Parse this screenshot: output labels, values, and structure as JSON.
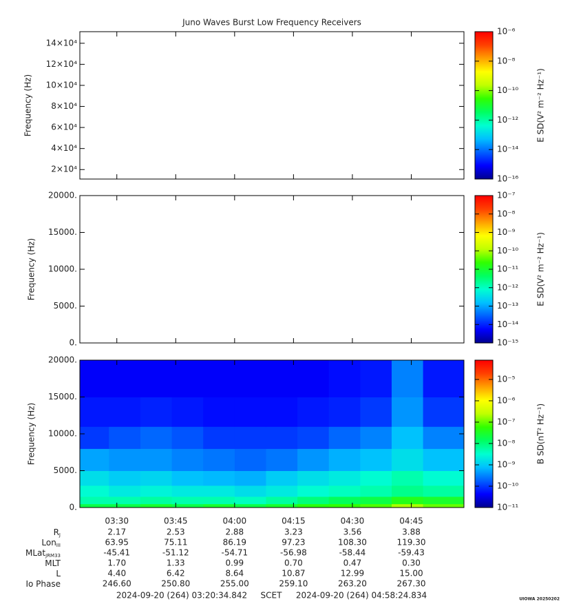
{
  "chart_data": [
    {
      "type": "spectrogram",
      "title": "Juno Waves Burst Low Frequency Receivers",
      "ylabel": "Frequency (Hz)",
      "xlim": [
        "2024-09-20T03:20:34.842",
        "2024-09-20T04:58:24.834"
      ],
      "xticks": [
        {
          "value": "2024-09-20T03:30:00",
          "label": "03:30"
        },
        {
          "value": "2024-09-20T03:45:00",
          "label": "03:45"
        },
        {
          "value": "2024-09-20T04:00:00",
          "label": "04:00"
        },
        {
          "value": "2024-09-20T04:15:00",
          "label": "04:15"
        },
        {
          "value": "2024-09-20T04:30:00",
          "label": "04:30"
        },
        {
          "value": "2024-09-20T04:45:00",
          "label": "04:45"
        }
      ],
      "ylim": [
        11000,
        151000
      ],
      "yticks": [
        {
          "value": 20000,
          "label": "2×10⁴"
        },
        {
          "value": 40000,
          "label": "4×10⁴"
        },
        {
          "value": 60000,
          "label": "6×10⁴"
        },
        {
          "value": 80000,
          "label": "8×10⁴"
        },
        {
          "value": 100000,
          "label": "10×10⁴"
        },
        {
          "value": 120000,
          "label": "12×10⁴"
        },
        {
          "value": 140000,
          "label": "14×10⁴"
        }
      ],
      "colorbar_label": "E SD(V² m⁻² Hz⁻¹)",
      "clim": [
        1e-16,
        1e-06
      ],
      "log_color": true,
      "cticks": [
        {
          "value": 1e-06,
          "label": "10⁻⁶"
        },
        {
          "value": 1e-08,
          "label": "10⁻⁸"
        },
        {
          "value": 1e-10,
          "label": "10⁻¹⁰"
        },
        {
          "value": 1e-12,
          "label": "10⁻¹²"
        },
        {
          "value": 1e-14,
          "label": "10⁻¹⁴"
        },
        {
          "value": 1e-16,
          "label": "10⁻¹⁶"
        }
      ]
    },
    {
      "type": "spectrogram",
      "ylabel": "Frequency (Hz)",
      "xlim": [
        "2024-09-20T03:20:34.842",
        "2024-09-20T04:58:24.834"
      ],
      "xticks": [
        {
          "value": "2024-09-20T03:30:00",
          "label": "03:30"
        },
        {
          "value": "2024-09-20T03:45:00",
          "label": "03:45"
        },
        {
          "value": "2024-09-20T04:00:00",
          "label": "04:00"
        },
        {
          "value": "2024-09-20T04:15:00",
          "label": "04:15"
        },
        {
          "value": "2024-09-20T04:30:00",
          "label": "04:30"
        },
        {
          "value": "2024-09-20T04:45:00",
          "label": "04:45"
        }
      ],
      "ylim": [
        0,
        20000
      ],
      "yticks": [
        {
          "value": 0,
          "label": "0."
        },
        {
          "value": 5000,
          "label": "5000."
        },
        {
          "value": 10000,
          "label": "10000."
        },
        {
          "value": 15000,
          "label": "15000."
        },
        {
          "value": 20000,
          "label": "20000."
        }
      ],
      "colorbar_label": "E SD(V² m⁻² Hz⁻¹)",
      "clim": [
        1e-15,
        1e-07
      ],
      "log_color": true,
      "cticks": [
        {
          "value": 1e-07,
          "label": "10⁻⁷"
        },
        {
          "value": 1e-08,
          "label": "10⁻⁸"
        },
        {
          "value": 1e-09,
          "label": "10⁻⁹"
        },
        {
          "value": 1e-10,
          "label": "10⁻¹⁰"
        },
        {
          "value": 1e-11,
          "label": "10⁻¹¹"
        },
        {
          "value": 1e-12,
          "label": "10⁻¹²"
        },
        {
          "value": 1e-13,
          "label": "10⁻¹³"
        },
        {
          "value": 1e-14,
          "label": "10⁻¹⁴"
        },
        {
          "value": 1e-15,
          "label": "10⁻¹⁵"
        }
      ]
    },
    {
      "type": "spectrogram",
      "ylabel": "Frequency (Hz)",
      "xlim": [
        "2024-09-20T03:20:34.842",
        "2024-09-20T04:58:24.834"
      ],
      "xticks": [
        {
          "value": "2024-09-20T03:30:00",
          "label": "03:30"
        },
        {
          "value": "2024-09-20T03:45:00",
          "label": "03:45"
        },
        {
          "value": "2024-09-20T04:00:00",
          "label": "04:00"
        },
        {
          "value": "2024-09-20T04:15:00",
          "label": "04:15"
        },
        {
          "value": "2024-09-20T04:30:00",
          "label": "04:30"
        },
        {
          "value": "2024-09-20T04:45:00",
          "label": "04:45"
        }
      ],
      "ylim": [
        0,
        20000
      ],
      "yticks": [
        {
          "value": 0,
          "label": "0."
        },
        {
          "value": 5000,
          "label": "5000."
        },
        {
          "value": 10000,
          "label": "10000."
        },
        {
          "value": 15000,
          "label": "15000."
        },
        {
          "value": 20000,
          "label": "20000."
        }
      ],
      "colorbar_label": "B SD(nT² Hz⁻¹)",
      "clim": [
        1e-11,
        8e-05
      ],
      "log_color": true,
      "cticks": [
        {
          "value": 1e-05,
          "label": "10⁻⁵"
        },
        {
          "value": 1e-06,
          "label": "10⁻⁶"
        },
        {
          "value": 1e-07,
          "label": "10⁻⁷"
        },
        {
          "value": 1e-08,
          "label": "10⁻⁸"
        },
        {
          "value": 1e-09,
          "label": "10⁻⁹"
        },
        {
          "value": 1e-10,
          "label": "10⁻¹⁰"
        },
        {
          "value": 1e-11,
          "label": "10⁻¹¹"
        }
      ],
      "time_bins": [
        "2024-09-20T03:20:34.842",
        "2024-09-20T03:28:00",
        "2024-09-20T03:36:00",
        "2024-09-20T03:44:00",
        "2024-09-20T03:52:00",
        "2024-09-20T04:00:00",
        "2024-09-20T04:08:00",
        "2024-09-20T04:16:00",
        "2024-09-20T04:24:00",
        "2024-09-20T04:32:00",
        "2024-09-20T04:40:00",
        "2024-09-20T04:48:00",
        "2024-09-20T04:58:24.834"
      ],
      "freq_bins": [
        0,
        500,
        1500,
        3000,
        5000,
        8000,
        11000,
        15000,
        20000
      ],
      "z": [
        [
          2e-08,
          2e-08,
          3e-08,
          2e-08,
          3e-08,
          2e-08,
          3e-08,
          5e-08,
          6e-08,
          8e-08,
          2e-07,
          1e-07
        ],
        [
          5e-09,
          5e-09,
          6e-09,
          5e-09,
          5e-09,
          4e-09,
          6e-09,
          1e-08,
          1.5e-08,
          2e-08,
          4e-08,
          3e-08
        ],
        [
          3e-09,
          2e-09,
          2.5e-09,
          2e-09,
          2e-09,
          1.5e-09,
          2e-09,
          3e-09,
          4e-09,
          5e-09,
          8e-09,
          6e-09
        ],
        [
          1.5e-09,
          1e-09,
          1.2e-09,
          8e-10,
          7e-10,
          6e-10,
          1e-09,
          1.5e-09,
          2e-09,
          3e-09,
          5e-09,
          3e-09
        ],
        [
          5e-10,
          4e-10,
          4e-10,
          3e-10,
          2.5e-10,
          2e-10,
          2.5e-10,
          4e-10,
          6e-10,
          8e-10,
          1.5e-09,
          8e-10
        ],
        [
          1e-10,
          1.5e-10,
          2e-10,
          1.5e-10,
          1e-10,
          1e-10,
          1e-10,
          1.2e-10,
          2e-10,
          3e-10,
          8e-10,
          3e-10
        ],
        [
          6e-11,
          6e-11,
          7e-11,
          6e-11,
          5e-11,
          5e-11,
          5e-11,
          6e-11,
          7e-11,
          1e-10,
          4e-10,
          1e-10
        ],
        [
          4e-11,
          4e-11,
          4e-11,
          4e-11,
          4e-11,
          4e-11,
          4e-11,
          4e-11,
          5e-11,
          6e-11,
          3e-10,
          6e-11
        ]
      ]
    }
  ],
  "colormap": [
    "#00008f",
    "#0000ff",
    "#0060ff",
    "#00c0ff",
    "#00ffd0",
    "#00ff60",
    "#30ff00",
    "#c0ff00",
    "#ffff00",
    "#ffa000",
    "#ff4000",
    "#ff0000"
  ],
  "ephemeris": {
    "rows": [
      {
        "label": "R",
        "sub": "J",
        "values": [
          "2.17",
          "2.53",
          "2.88",
          "3.23",
          "3.56",
          "3.88"
        ]
      },
      {
        "label": "Lon",
        "sub": "III",
        "values": [
          "63.95",
          "75.11",
          "86.19",
          "97.23",
          "108.30",
          "119.30"
        ]
      },
      {
        "label": "MLat",
        "sub": "JRM33",
        "values": [
          "-45.41",
          "-51.12",
          "-54.71",
          "-56.98",
          "-58.44",
          "-59.43"
        ]
      },
      {
        "label": "MLT",
        "values": [
          "1.70",
          "1.33",
          "0.99",
          "0.70",
          "0.47",
          "0.30"
        ]
      },
      {
        "label": "L",
        "values": [
          "4.40",
          "6.42",
          "8.64",
          "10.87",
          "12.99",
          "15.00"
        ]
      },
      {
        "label": "Io Phase",
        "values": [
          "246.60",
          "250.80",
          "255.00",
          "259.10",
          "263.20",
          "267.30"
        ]
      }
    ]
  },
  "footer": {
    "start": "2024-09-20 (264) 03:20:34.842",
    "frame": "SCET",
    "end": "2024-09-20 (264) 04:58:24.834",
    "credit": "UIOWA 20250202"
  }
}
